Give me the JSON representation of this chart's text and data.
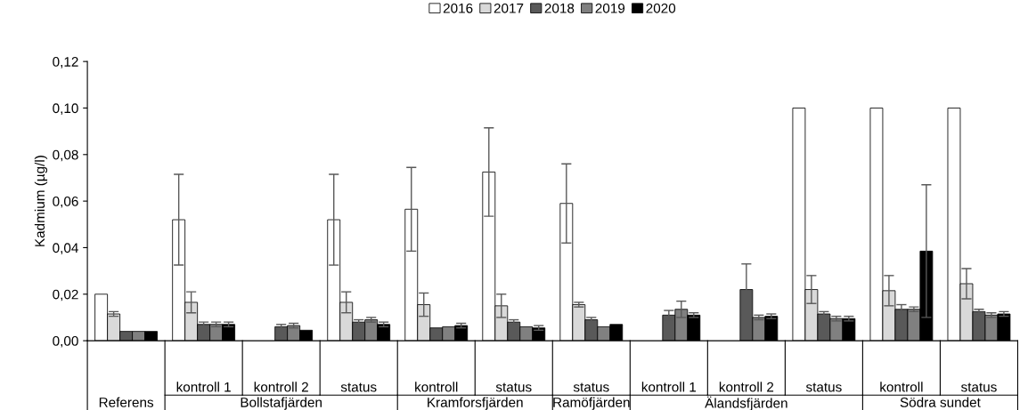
{
  "chart_data": {
    "type": "bar",
    "ylabel": "Kadmium (µg/l)",
    "categories": [
      null,
      "kontroll 1",
      "kontroll 2",
      "status",
      "kontroll",
      "status",
      "status",
      "kontroll 1",
      "kontroll 2",
      "status",
      "kontroll",
      "status"
    ],
    "series": [
      {
        "name": "2016",
        "color": "#ffffff",
        "values": [
          0.02,
          0.052,
          null,
          0.052,
          0.0565,
          0.0725,
          0.059,
          null,
          null,
          0.1,
          0.1,
          0.1
        ],
        "errors": [
          null,
          0.0195,
          null,
          0.0195,
          0.018,
          0.019,
          0.017,
          null,
          null,
          null,
          null,
          null
        ]
      },
      {
        "name": "2017",
        "color": "#d9d9d9",
        "values": [
          0.0115,
          0.0165,
          null,
          0.0165,
          0.0155,
          0.015,
          0.0155,
          null,
          null,
          0.022,
          0.0215,
          0.0245
        ],
        "errors": [
          0.001,
          0.0045,
          null,
          0.0045,
          0.005,
          0.005,
          0.001,
          null,
          null,
          0.006,
          0.0065,
          0.0065
        ]
      },
      {
        "name": "2018",
        "color": "#595959",
        "values": [
          0.004,
          0.007,
          0.006,
          0.008,
          0.0055,
          0.008,
          0.009,
          0.011,
          0.022,
          0.0115,
          0.0135,
          0.0125
        ],
        "errors": [
          null,
          0.001,
          0.001,
          0.001,
          null,
          0.001,
          0.001,
          0.002,
          0.011,
          0.001,
          0.002,
          0.001
        ]
      },
      {
        "name": "2019",
        "color": "#808080",
        "values": [
          0.004,
          0.007,
          0.0065,
          0.009,
          0.006,
          0.006,
          0.006,
          0.0135,
          0.01,
          0.0095,
          0.0135,
          0.011
        ],
        "errors": [
          null,
          0.001,
          0.001,
          0.001,
          null,
          null,
          null,
          0.0035,
          0.001,
          0.001,
          0.001,
          0.001
        ]
      },
      {
        "name": "2020",
        "color": "#000000",
        "values": [
          0.004,
          0.007,
          0.0045,
          0.007,
          0.0065,
          0.0055,
          0.007,
          0.011,
          0.0105,
          0.0095,
          0.0385,
          0.0115
        ],
        "errors": [
          null,
          0.001,
          null,
          0.001,
          0.001,
          0.001,
          null,
          0.001,
          0.001,
          0.001,
          0.0285,
          0.001
        ]
      }
    ],
    "ylim": [
      0,
      0.12
    ],
    "yticks": [
      {
        "value": 0,
        "label": "0,00"
      },
      {
        "value": 0.02,
        "label": "0,02"
      },
      {
        "value": 0.04,
        "label": "0,04"
      },
      {
        "value": 0.06,
        "label": "0,06"
      },
      {
        "value": 0.08,
        "label": "0,08"
      },
      {
        "value": 0.1,
        "label": "0,10"
      },
      {
        "value": 0.12,
        "label": "0,12"
      }
    ],
    "annotations": [
      "Referens",
      "Bollstafjärden",
      "Kramforsfjärden",
      "Ramöfjärden",
      "Älandsfjärden",
      "Södra sundet"
    ],
    "grid": false,
    "legend": "top"
  }
}
